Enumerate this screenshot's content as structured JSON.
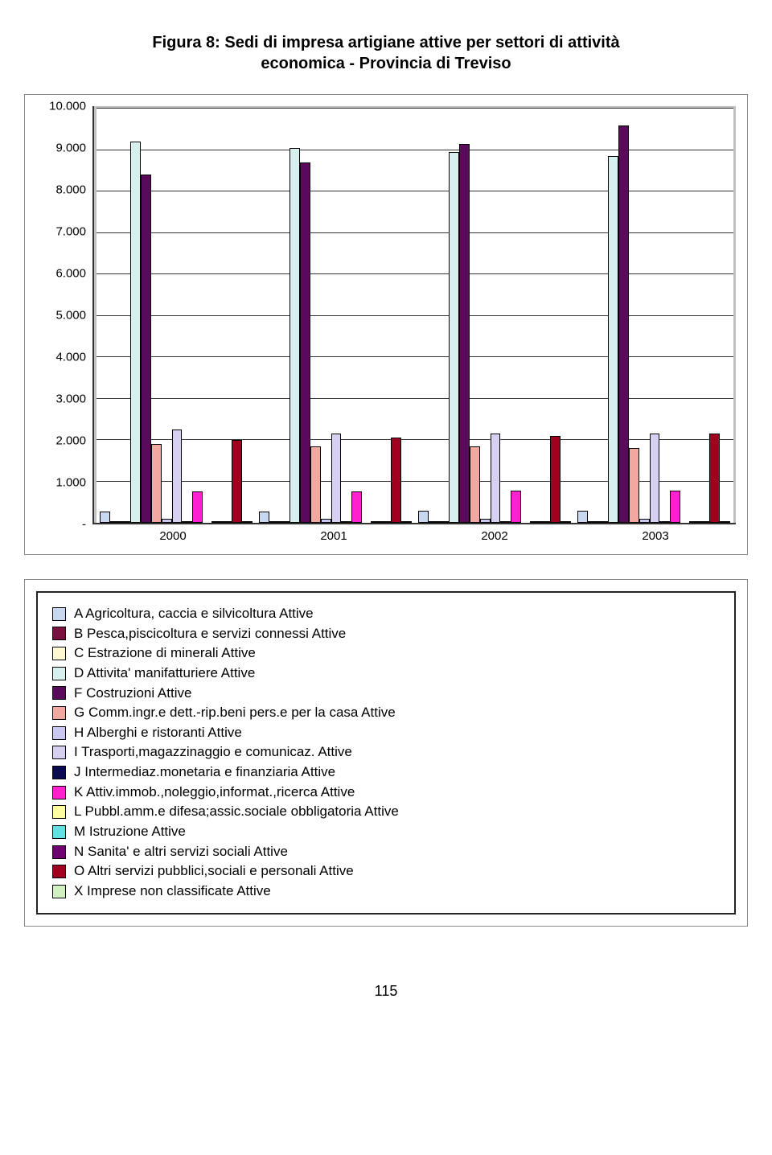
{
  "title_line1": "Figura 8: Sedi di impresa artigiane attive per settori di attività",
  "title_line2": "economica - Provincia di Treviso",
  "page_number": "115",
  "chart": {
    "type": "bar",
    "ylim": [
      0,
      10000
    ],
    "ytick_step": 1000,
    "y_ticks": [
      "-",
      "1.000",
      "2.000",
      "3.000",
      "4.000",
      "5.000",
      "6.000",
      "7.000",
      "8.000",
      "9.000",
      "10.000"
    ],
    "plot_bg": "#ffffff",
    "panel_bg": "#c0c0c0",
    "gridline_color": "#333333",
    "axis_color": "#333333",
    "label_fontsize": 15,
    "categories": [
      "2000",
      "2001",
      "2002",
      "2003"
    ],
    "series": [
      {
        "key": "A",
        "label": "A Agricoltura, caccia e silvicoltura Attive",
        "color": "#c8d8f0",
        "border": "#000000"
      },
      {
        "key": "B",
        "label": "B Pesca,piscicoltura e servizi connessi Attive",
        "color": "#7a1040",
        "border": "#000000"
      },
      {
        "key": "C",
        "label": "C Estrazione di minerali Attive",
        "color": "#fff8d0",
        "border": "#000000"
      },
      {
        "key": "D",
        "label": "D Attivita' manifatturiere Attive",
        "color": "#d6f0f0",
        "border": "#000000"
      },
      {
        "key": "F",
        "label": "F Costruzioni Attive",
        "color": "#5a0a5a",
        "border": "#000000"
      },
      {
        "key": "G",
        "label": "G Comm.ingr.e dett.-rip.beni pers.e per la casa Attive",
        "color": "#f0a8a0",
        "border": "#000000"
      },
      {
        "key": "H",
        "label": "H Alberghi e ristoranti Attive",
        "color": "#c8c8f0",
        "border": "#000000"
      },
      {
        "key": "I",
        "label": "I Trasporti,magazzinaggio e comunicaz. Attive",
        "color": "#d8d0f0",
        "border": "#000000"
      },
      {
        "key": "J",
        "label": "J Intermediaz.monetaria e finanziaria Attive",
        "color": "#0a0a50",
        "border": "#000000"
      },
      {
        "key": "K",
        "label": "K Attiv.immob.,noleggio,informat.,ricerca Attive",
        "color": "#ff20d0",
        "border": "#000000"
      },
      {
        "key": "L",
        "label": "L Pubbl.amm.e difesa;assic.sociale obbligatoria Attive",
        "color": "#ffffa0",
        "border": "#000000"
      },
      {
        "key": "M",
        "label": "M Istruzione Attive",
        "color": "#60e0e0",
        "border": "#000000"
      },
      {
        "key": "N",
        "label": "N Sanita' e altri servizi sociali Attive",
        "color": "#700070",
        "border": "#000000"
      },
      {
        "key": "O",
        "label": "O Altri servizi pubblici,sociali e personali Attive",
        "color": "#a00020",
        "border": "#000000"
      },
      {
        "key": "X",
        "label": "X Imprese non classificate Attive",
        "color": "#d0f0c0",
        "border": "#000000"
      }
    ],
    "data": {
      "2000": {
        "A": 280,
        "B": 40,
        "C": 30,
        "D": 9200,
        "F": 8400,
        "G": 1900,
        "H": 100,
        "I": 2250,
        "J": 5,
        "K": 750,
        "L": 0,
        "M": 10,
        "N": 10,
        "O": 2000,
        "X": 40
      },
      "2001": {
        "A": 280,
        "B": 40,
        "C": 30,
        "D": 9050,
        "F": 8700,
        "G": 1850,
        "H": 100,
        "I": 2150,
        "J": 5,
        "K": 750,
        "L": 0,
        "M": 10,
        "N": 10,
        "O": 2050,
        "X": 40
      },
      "2002": {
        "A": 300,
        "B": 40,
        "C": 30,
        "D": 8950,
        "F": 9150,
        "G": 1850,
        "H": 100,
        "I": 2150,
        "J": 5,
        "K": 770,
        "L": 0,
        "M": 10,
        "N": 10,
        "O": 2100,
        "X": 40
      },
      "2003": {
        "A": 300,
        "B": 40,
        "C": 30,
        "D": 8850,
        "F": 9600,
        "G": 1800,
        "H": 100,
        "I": 2150,
        "J": 5,
        "K": 770,
        "L": 0,
        "M": 10,
        "N": 10,
        "O": 2150,
        "X": 40
      }
    }
  }
}
